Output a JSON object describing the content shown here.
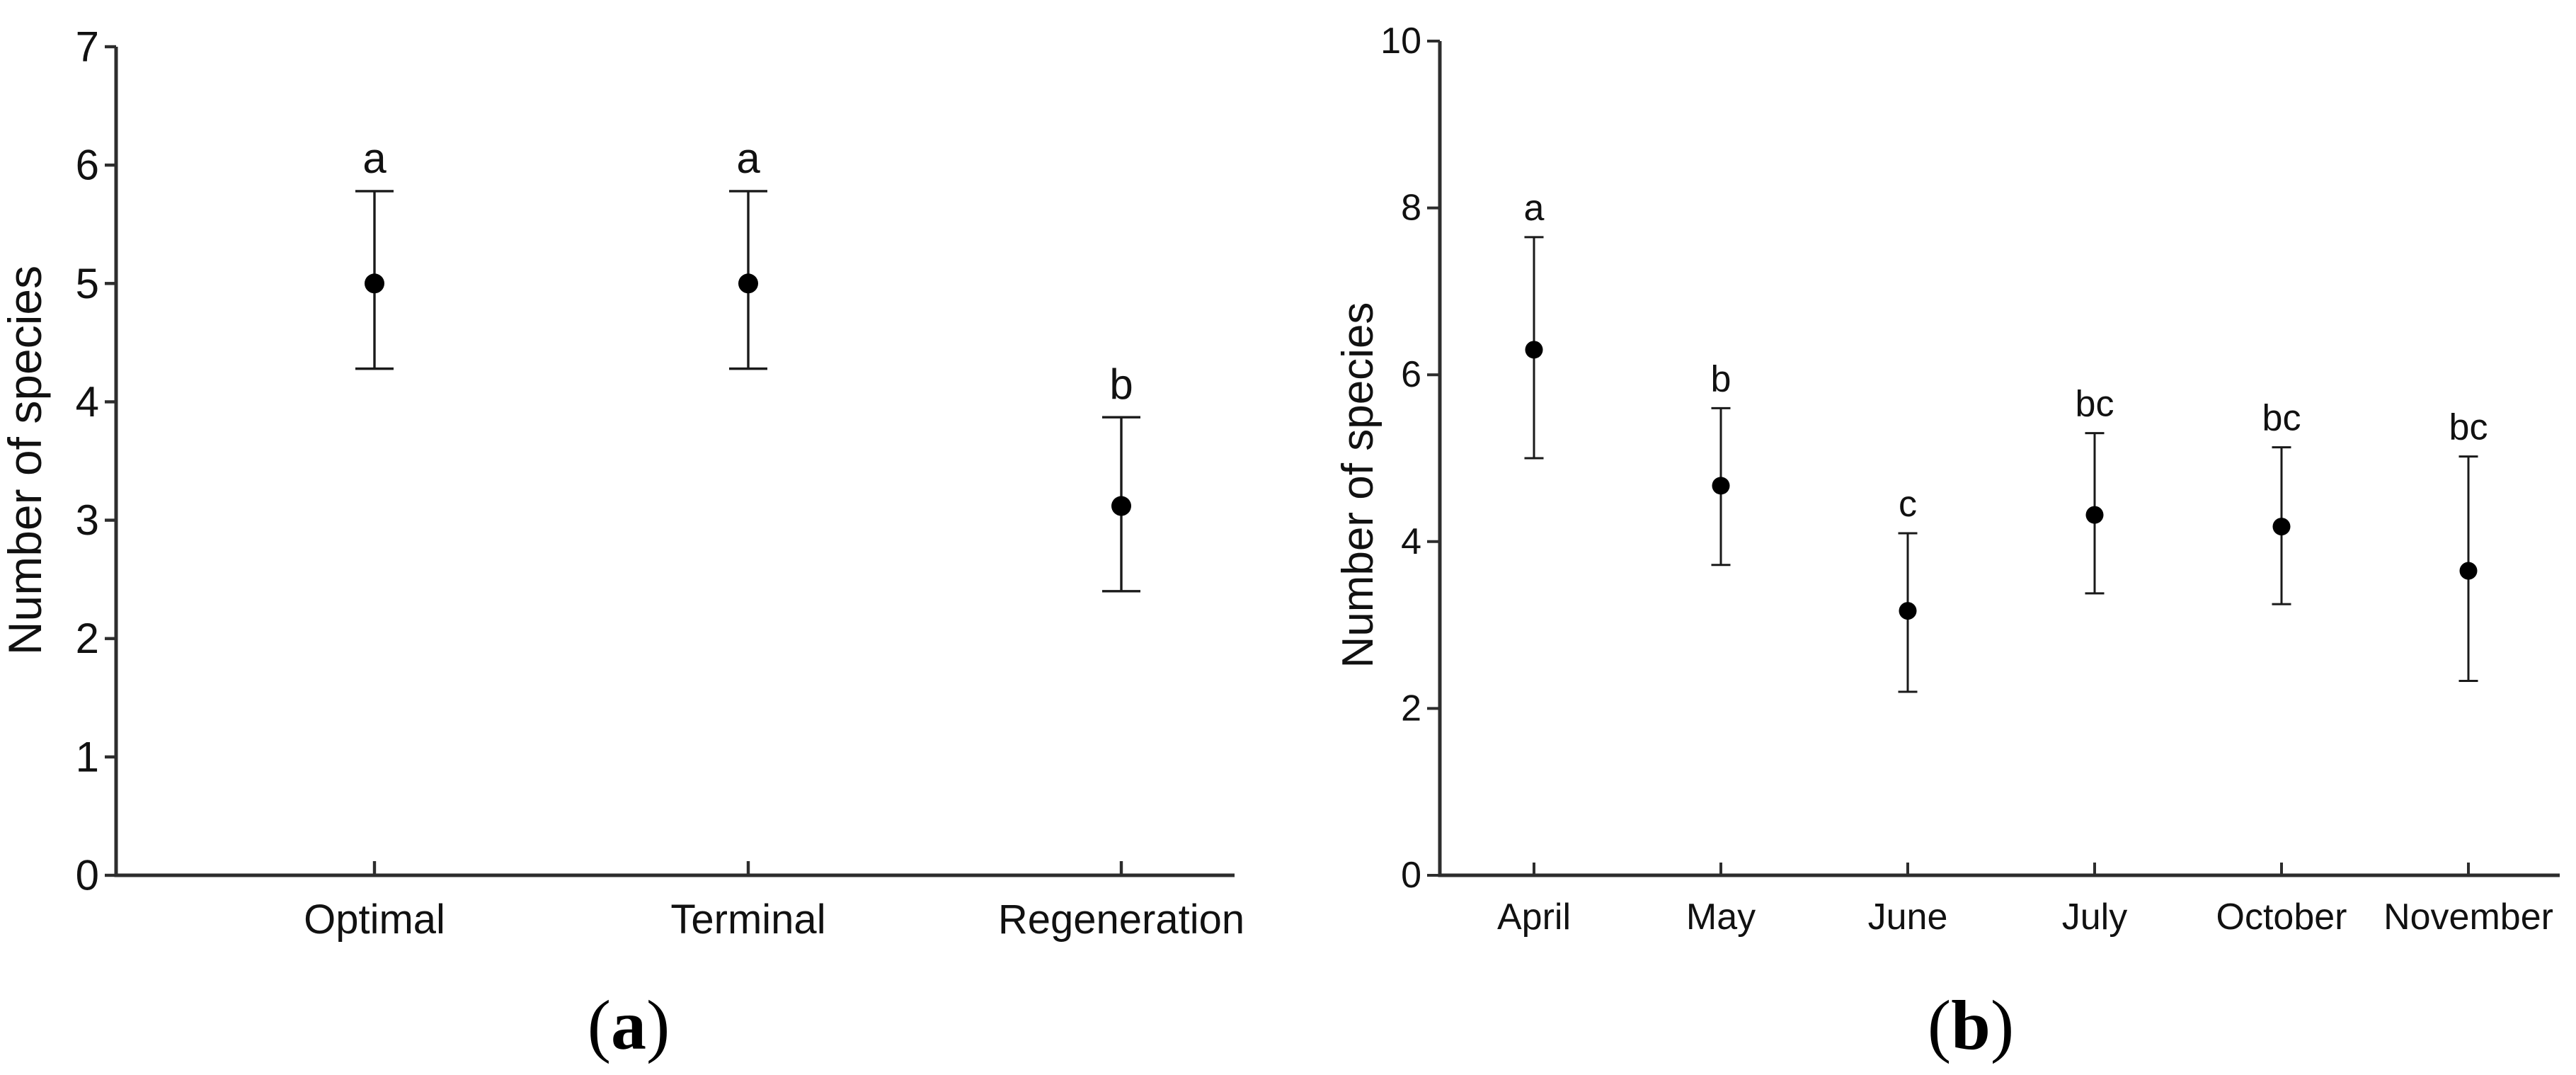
{
  "figure": {
    "background_color": "#ffffff",
    "captions": [
      {
        "open": "(",
        "letter": "a",
        "close": ")"
      },
      {
        "open": "(",
        "letter": "b",
        "close": ")"
      }
    ]
  },
  "colors": {
    "axis": "#2d2d2d",
    "marker": "#000000",
    "error_bar": "#1a1a1a",
    "text": "#111111"
  },
  "chart_data": [
    {
      "id": "a",
      "type": "scatter",
      "title": "",
      "xlabel": "",
      "ylabel": "Number of species",
      "ylim": [
        0,
        7
      ],
      "yticks": [
        0,
        1,
        2,
        3,
        4,
        5,
        6,
        7
      ],
      "grid": false,
      "legend": "none",
      "marker": "filled-circle",
      "error_caps": true,
      "categories": [
        "Optimal",
        "Terminal",
        "Regeneration"
      ],
      "series": [
        {
          "name": "mean",
          "means": [
            5.0,
            5.0,
            3.12
          ],
          "err_low": [
            4.28,
            4.28,
            2.4
          ],
          "err_high": [
            5.78,
            5.78,
            3.87
          ]
        }
      ],
      "point_labels": [
        "a",
        "a",
        "b"
      ],
      "caption": "(a)"
    },
    {
      "id": "b",
      "type": "scatter",
      "title": "",
      "xlabel": "",
      "ylabel": "Number of species",
      "ylim": [
        0,
        10
      ],
      "yticks": [
        0,
        2,
        4,
        6,
        8,
        10
      ],
      "grid": false,
      "legend": "none",
      "marker": "filled-circle",
      "error_caps": true,
      "categories": [
        "April",
        "May",
        "June",
        "July",
        "October",
        "November"
      ],
      "series": [
        {
          "name": "mean",
          "means": [
            6.3,
            4.67,
            3.17,
            4.32,
            4.18,
            3.65
          ],
          "err_low": [
            5.0,
            3.72,
            2.2,
            3.38,
            3.25,
            2.33
          ],
          "err_high": [
            7.65,
            5.6,
            4.1,
            5.3,
            5.13,
            5.02
          ]
        }
      ],
      "point_labels": [
        "a",
        "b",
        "c",
        "bc",
        "bc",
        "bc"
      ],
      "caption": "(b)"
    }
  ]
}
